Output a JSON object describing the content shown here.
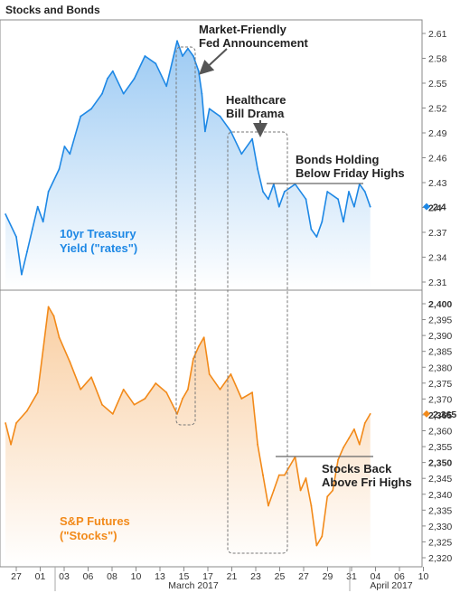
{
  "title": "Stocks and Bonds",
  "colors": {
    "bond": "#1e88e5",
    "stock": "#f28a1a",
    "frame": "#888888",
    "annotation": "#555555"
  },
  "chart_data": [
    {
      "type": "area",
      "series_label": [
        "10yr Treasury",
        "Yield (\"rates\")"
      ],
      "ylim": [
        2.3,
        2.63
      ],
      "yticks": [
        "2.61",
        "2.58",
        "2.55",
        "2.52",
        "2.49",
        "2.46",
        "2.43",
        "2.4",
        "2.37",
        "2.34",
        "2.31"
      ],
      "last_value": "2.4",
      "x": [
        -2.0,
        -1.0,
        -0.5,
        0.0,
        0.5,
        1.0,
        1.5,
        2.0,
        3.0,
        3.5,
        4.0,
        5.0,
        6.0,
        7.0,
        7.5,
        8.0,
        9.0,
        10.0,
        11.0,
        12.0,
        13.0,
        14.0,
        14.5,
        15.0,
        15.5,
        16.0,
        16.3,
        16.6,
        17.0,
        18.0,
        19.0,
        20.0,
        21.0,
        21.5,
        22.0,
        22.5,
        23.0,
        23.5,
        24.0,
        25.0,
        26.0,
        26.5,
        27.0,
        27.5,
        28.0,
        29.0,
        29.5,
        30.0,
        30.5,
        31.0,
        31.5,
        32.0
      ],
      "y": [
        2.39,
        2.36,
        2.31,
        2.34,
        2.37,
        2.4,
        2.38,
        2.42,
        2.45,
        2.48,
        2.47,
        2.52,
        2.53,
        2.55,
        2.57,
        2.58,
        2.55,
        2.57,
        2.6,
        2.59,
        2.56,
        2.62,
        2.6,
        2.61,
        2.6,
        2.58,
        2.55,
        2.5,
        2.53,
        2.52,
        2.5,
        2.47,
        2.49,
        2.45,
        2.42,
        2.41,
        2.43,
        2.4,
        2.42,
        2.43,
        2.41,
        2.37,
        2.36,
        2.38,
        2.42,
        2.41,
        2.38,
        2.42,
        2.4,
        2.43,
        2.42,
        2.4
      ]
    },
    {
      "type": "area",
      "series_label": [
        "S&P Futures",
        "(\"Stocks\")"
      ],
      "ylim": [
        2318,
        2401
      ],
      "yticks": [
        "2,400",
        "2,395",
        "2,390",
        "2,385",
        "2,380",
        "2,375",
        "2,370",
        "2,365",
        "2,360",
        "2,355",
        "2,350",
        "2,345",
        "2,340",
        "2,335",
        "2,330",
        "2,325",
        "2,320"
      ],
      "last_value": "2,365",
      "x": [
        -2.0,
        -1.5,
        -1.0,
        0.0,
        1.0,
        1.5,
        2.0,
        2.5,
        3.0,
        4.0,
        5.0,
        6.0,
        7.0,
        8.0,
        9.0,
        10.0,
        11.0,
        12.0,
        13.0,
        14.0,
        14.5,
        15.0,
        15.5,
        16.0,
        16.5,
        17.0,
        18.0,
        19.0,
        20.0,
        21.0,
        21.5,
        22.0,
        22.5,
        23.0,
        23.5,
        24.0,
        25.0,
        25.5,
        26.0,
        26.5,
        27.0,
        27.5,
        28.0,
        28.5,
        29.0,
        29.5,
        30.0,
        30.5,
        31.0,
        31.5,
        32.0
      ],
      "y": [
        2362,
        2355,
        2362,
        2366,
        2372,
        2386,
        2400,
        2397,
        2390,
        2382,
        2373,
        2377,
        2368,
        2365,
        2373,
        2368,
        2370,
        2375,
        2372,
        2365,
        2370,
        2373,
        2383,
        2387,
        2390,
        2378,
        2373,
        2378,
        2370,
        2372,
        2355,
        2345,
        2335,
        2340,
        2345,
        2345,
        2351,
        2340,
        2344,
        2335,
        2322,
        2325,
        2338,
        2340,
        2350,
        2354,
        2357,
        2360,
        2355,
        2362,
        2365
      ]
    }
  ],
  "x_axis": {
    "ticks": [
      "27",
      "01",
      "03",
      "06",
      "08",
      "10",
      "13",
      "15",
      "17",
      "21",
      "23",
      "25",
      "27",
      "29",
      "31",
      "04",
      "06",
      "10"
    ],
    "months": [
      "March 2017",
      "April 2017"
    ]
  },
  "annotations": {
    "fed": [
      "Market-Friendly",
      "Fed Announcement"
    ],
    "healthcare": [
      "Healthcare",
      "Bill Drama"
    ],
    "bonds": [
      "Bonds Holding",
      "Below Friday Highs"
    ],
    "stocks": [
      "Stocks Back",
      "Above Fri Highs"
    ]
  }
}
